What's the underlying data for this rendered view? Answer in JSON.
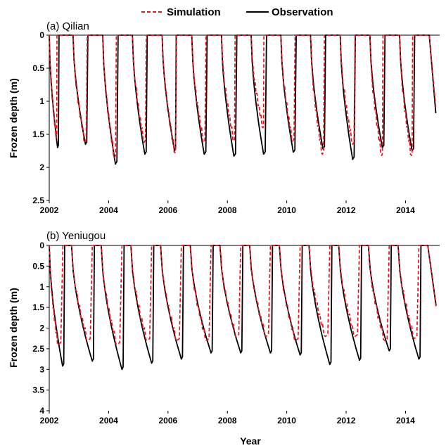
{
  "legend": {
    "simulation_label": "Simulation",
    "observation_label": "Observation",
    "simulation_color": "#e8141c",
    "observation_color": "#000000"
  },
  "chart_data": [
    {
      "type": "line",
      "title": "(a) Qilian",
      "xlabel": "",
      "ylabel": "Frozen depth (m)",
      "xlim": [
        2002,
        2015.15
      ],
      "ylim": [
        0,
        2.5
      ],
      "y_inverted": true,
      "xticks": [
        2002,
        2004,
        2006,
        2008,
        2010,
        2012,
        2014
      ],
      "yticks": [
        "0",
        "0.5",
        "1",
        "1.5",
        "2",
        "2.5"
      ],
      "yticks_values": [
        0,
        0.5,
        1,
        1.5,
        2,
        2.5
      ],
      "season_onset_x": [
        2002.0,
        2002.8,
        2003.8,
        2004.8,
        2005.8,
        2006.8,
        2007.8,
        2008.8,
        2009.8,
        2010.8,
        2011.8,
        2012.8,
        2013.8,
        2014.8
      ],
      "series": [
        {
          "name": "Observation",
          "peak_x": [
            2002.28,
            2003.22,
            2004.23,
            2005.22,
            2006.22,
            2007.22,
            2008.22,
            2009.22,
            2010.22,
            2011.22,
            2012.22,
            2013.22,
            2014.22
          ],
          "peak_depth": [
            1.7,
            1.65,
            1.95,
            1.8,
            1.75,
            1.8,
            1.83,
            1.8,
            1.77,
            1.72,
            1.88,
            1.7,
            1.75
          ],
          "thaw_x": [
            2002.33,
            2003.3,
            2004.32,
            2005.3,
            2006.28,
            2007.32,
            2008.32,
            2009.32,
            2010.32,
            2011.31,
            2012.31,
            2013.31,
            2014.31
          ],
          "end_point": [
            2015.02,
            1.18
          ]
        },
        {
          "name": "Simulation",
          "peak_x": [
            2002.24,
            2003.2,
            2004.2,
            2005.2,
            2006.24,
            2007.2,
            2008.22,
            2009.2,
            2010.2,
            2011.2,
            2012.22,
            2013.2,
            2014.2
          ],
          "peak_depth": [
            1.55,
            1.62,
            1.85,
            1.62,
            1.78,
            1.62,
            1.6,
            1.4,
            1.6,
            1.8,
            1.65,
            1.82,
            1.82
          ],
          "thaw_x": [
            2002.26,
            2003.28,
            2004.26,
            2005.27,
            2006.27,
            2007.28,
            2008.26,
            2009.23,
            2010.28,
            2011.27,
            2012.3,
            2013.24,
            2014.24
          ],
          "end_point": [
            2015.02,
            1.1
          ]
        }
      ]
    },
    {
      "type": "line",
      "title": "(b) Yeniugou",
      "xlabel": "Year",
      "ylabel": "Frozen depth (m)",
      "xlim": [
        2002,
        2015.15
      ],
      "ylim": [
        0,
        4
      ],
      "y_inverted": true,
      "xticks": [
        2002,
        2004,
        2006,
        2008,
        2010,
        2012,
        2014
      ],
      "yticks": [
        "0",
        "0.5",
        "1",
        "1.5",
        "2",
        "2.5",
        "3",
        "3.5",
        "4"
      ],
      "yticks_values": [
        0,
        0.5,
        1,
        1.5,
        2,
        2.5,
        3,
        3.5,
        4
      ],
      "season_onset_x": [
        2002.0,
        2002.75,
        2003.75,
        2004.75,
        2005.75,
        2006.75,
        2007.75,
        2008.75,
        2009.75,
        2010.75,
        2011.75,
        2012.75,
        2013.75,
        2014.75
      ],
      "series": [
        {
          "name": "Observation",
          "peak_x": [
            2002.45,
            2003.45,
            2004.45,
            2005.45,
            2006.45,
            2007.45,
            2008.45,
            2009.45,
            2010.45,
            2011.45,
            2012.45,
            2013.45,
            2014.45
          ],
          "peak_depth": [
            2.92,
            2.8,
            3.0,
            2.85,
            2.75,
            2.6,
            2.6,
            2.6,
            2.65,
            2.88,
            2.78,
            2.55,
            2.75
          ],
          "thaw_x": [
            2002.52,
            2003.52,
            2004.52,
            2005.52,
            2006.52,
            2007.52,
            2008.52,
            2009.52,
            2010.52,
            2011.52,
            2012.52,
            2013.52,
            2014.52
          ],
          "end_point": [
            2015.03,
            1.45
          ]
        },
        {
          "name": "Simulation",
          "peak_x": [
            2002.3,
            2003.3,
            2004.28,
            2005.3,
            2006.3,
            2007.3,
            2008.3,
            2009.3,
            2010.3,
            2011.3,
            2012.3,
            2013.3,
            2014.3
          ],
          "peak_depth": [
            2.4,
            2.3,
            2.4,
            2.3,
            2.3,
            2.3,
            2.2,
            2.2,
            2.3,
            2.2,
            2.2,
            2.3,
            2.25
          ],
          "thaw_x": [
            2002.46,
            2003.45,
            2004.45,
            2005.45,
            2006.45,
            2007.45,
            2008.45,
            2009.45,
            2010.45,
            2011.45,
            2012.45,
            2013.45,
            2014.45
          ],
          "end_point": [
            2015.03,
            1.5
          ]
        }
      ]
    }
  ]
}
